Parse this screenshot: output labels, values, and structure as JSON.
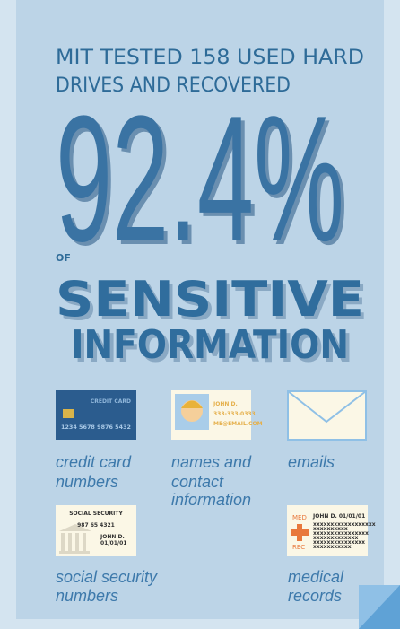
{
  "header": {
    "lines": [
      "MIT TESTED 158 USED HARD",
      "DRIVES AND RECOVERED"
    ]
  },
  "stat": "92.4%",
  "connector": "OF",
  "subject": [
    "SENSITIVE",
    "INFORMATION"
  ],
  "items": [
    {
      "label": [
        "credit card",
        "numbers"
      ],
      "card": [
        "CREDIT CARD",
        "1234 5678 9876 5432"
      ]
    },
    {
      "label": [
        "names and",
        "contact",
        "information"
      ],
      "card": [
        "JOHN D.",
        "333-333-0333",
        "ME@EMAIL.COM"
      ]
    },
    {
      "label": [
        "emails"
      ]
    },
    {
      "label": [
        "social security",
        "numbers"
      ],
      "card": [
        "SOCIAL SECURITY",
        "987 65 4321",
        "JOHN D.",
        "01/01/01"
      ]
    },
    {
      "label": [
        "medical",
        "records"
      ],
      "card": [
        "MED",
        "REC",
        "JOHN D. 01/01/01",
        "xxxxxxxxxxxxxxxxxx",
        "xxxxxxxxxx",
        "xxxxxxxxxxxxxxxx",
        "xxxxxxxxxxxxx",
        "xxxxxxxxxxxxxxx",
        "xxxxxxxxxxx"
      ]
    }
  ]
}
